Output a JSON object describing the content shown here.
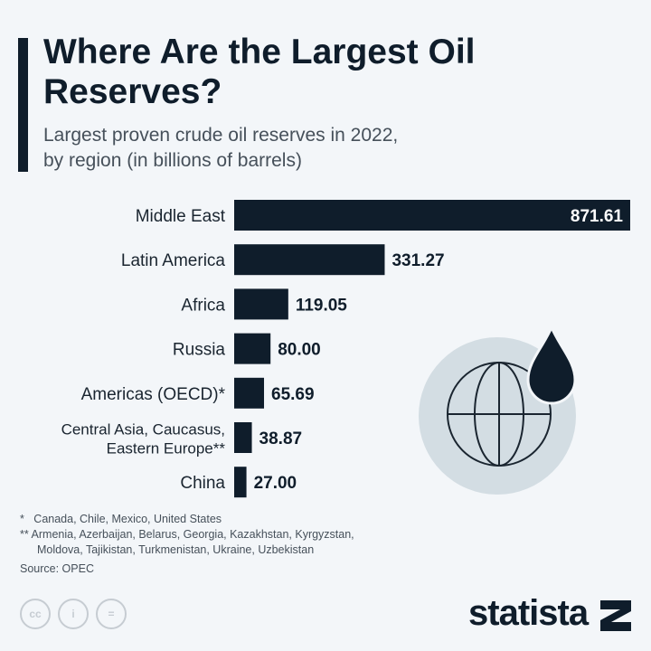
{
  "title": "Where Are the Largest Oil Reserves?",
  "subtitle_line1": "Largest proven crude oil reserves in 2022,",
  "subtitle_line2": "by region (in billions of barrels)",
  "chart_data": {
    "type": "bar",
    "orientation": "horizontal",
    "categories": [
      "Middle East",
      "Latin America",
      "Africa",
      "Russia",
      "Americas (OECD)*",
      "Central Asia, Caucasus, Eastern Europe**",
      "China"
    ],
    "category_lines": [
      [
        "Middle East"
      ],
      [
        "Latin America"
      ],
      [
        "Africa"
      ],
      [
        "Russia"
      ],
      [
        "Americas (OECD)*"
      ],
      [
        "Central Asia, Caucasus,",
        "Eastern Europe**"
      ],
      [
        "China"
      ]
    ],
    "values": [
      871.61,
      331.27,
      119.05,
      80.0,
      65.69,
      38.87,
      27.0
    ],
    "labels": [
      "871.61",
      "331.27",
      "119.05",
      "80.00",
      "65.69",
      "38.87",
      "27.00"
    ],
    "bar_color": "#0f1d2b",
    "grid": false
  },
  "notes": {
    "n1_mark": "*",
    "n1": "Canada, Chile, Mexico, United States",
    "n2_mark": "**",
    "n2_line1": "Armenia, Azerbaijan, Belarus, Georgia, Kazakhstan, Kyrgyzstan,",
    "n2_line2": "Moldova, Tajikistan, Turkmenistan, Ukraine, Uzbekistan",
    "source": "Source: OPEC"
  },
  "license_icons": [
    "cc-icon",
    "attribution-icon",
    "no-derivatives-icon"
  ],
  "license_text": [
    "cc",
    "i",
    "="
  ],
  "brand": "statista",
  "icons": [
    "globe-icon",
    "oil-drop-icon"
  ]
}
